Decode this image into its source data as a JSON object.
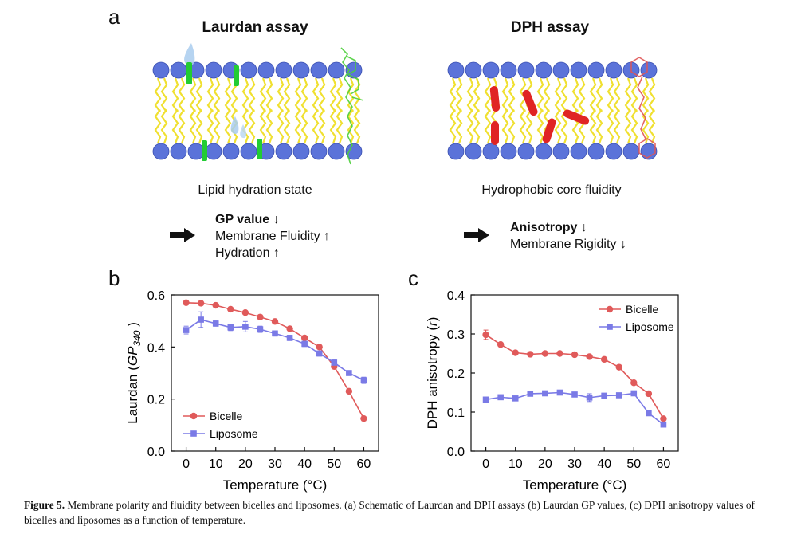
{
  "panel_a": {
    "letter": "a",
    "laurdan": {
      "title": "Laurdan assay",
      "subtitle": "Lipid hydration state",
      "summary": {
        "bold": "GP value ↓",
        "line2": "Membrane Fluidity ↑",
        "line3": "Hydration ↑"
      }
    },
    "dph": {
      "title": "DPH assay",
      "subtitle": "Hydrophobic core fluidity",
      "summary": {
        "bold": "Anisotropy ↓",
        "line2": "Membrane Rigidity ↓"
      }
    },
    "colors": {
      "lipid_head": "#5b73d9",
      "lipid_tail": "#f0e030",
      "laurdan_probe": "#22cc33",
      "dph_probe": "#e02424",
      "water": "#a9cdef"
    }
  },
  "chart_data": [
    {
      "panel": "b",
      "type": "line",
      "xlabel": "Temperature (°C)",
      "ylabel_prefix": "Laurdan (",
      "ylabel_var": "GP",
      "ylabel_sub": "340",
      "ylabel_suffix": ")",
      "xlim": [
        -5,
        65
      ],
      "ylim": [
        0.0,
        0.6
      ],
      "xticks": [
        0,
        10,
        20,
        30,
        40,
        50,
        60
      ],
      "yticks": [
        0.0,
        0.2,
        0.4,
        0.6
      ],
      "ytick_labels": [
        "0.0",
        "0.2",
        "0.4",
        "0.6"
      ],
      "legend_position": "bottom-left",
      "x": [
        0,
        5,
        10,
        15,
        20,
        25,
        30,
        35,
        40,
        45,
        50,
        55,
        60
      ],
      "series": [
        {
          "name": "Bicelle",
          "color": "#e05a5a",
          "marker": "circle",
          "values": [
            0.57,
            0.568,
            0.56,
            0.545,
            0.532,
            0.515,
            0.498,
            0.47,
            0.435,
            0.4,
            0.325,
            0.23,
            0.125
          ],
          "errors": [
            0.005,
            0.005,
            0.005,
            0.005,
            0.005,
            0.005,
            0.005,
            0.005,
            0.005,
            0.005,
            0.005,
            0.005,
            0.005
          ]
        },
        {
          "name": "Liposome",
          "color": "#7a7ae6",
          "marker": "square",
          "values": [
            0.465,
            0.505,
            0.49,
            0.475,
            0.478,
            0.468,
            0.452,
            0.435,
            0.412,
            0.375,
            0.34,
            0.3,
            0.272
          ],
          "errors": [
            0.015,
            0.03,
            0.01,
            0.012,
            0.02,
            0.012,
            0.01,
            0.01,
            0.01,
            0.01,
            0.01,
            0.008,
            0.012
          ]
        }
      ]
    },
    {
      "panel": "c",
      "type": "line",
      "xlabel": "Temperature (°C)",
      "ylabel_prefix": "DPH anisotropy (",
      "ylabel_var": "r",
      "ylabel_sub": "",
      "ylabel_suffix": ")",
      "xlim": [
        -5,
        65
      ],
      "ylim": [
        0.0,
        0.4
      ],
      "xticks": [
        0,
        10,
        20,
        30,
        40,
        50,
        60
      ],
      "yticks": [
        0.0,
        0.1,
        0.2,
        0.3,
        0.4
      ],
      "ytick_labels": [
        "0.0",
        "0.1",
        "0.2",
        "0.3",
        "0.4"
      ],
      "legend_position": "top-right",
      "x": [
        0,
        5,
        10,
        15,
        20,
        25,
        30,
        35,
        40,
        45,
        50,
        55,
        60
      ],
      "series": [
        {
          "name": "Bicelle",
          "color": "#e05a5a",
          "marker": "circle",
          "values": [
            0.298,
            0.273,
            0.252,
            0.248,
            0.25,
            0.25,
            0.247,
            0.242,
            0.235,
            0.215,
            0.175,
            0.147,
            0.083
          ],
          "errors": [
            0.012,
            0.004,
            0.004,
            0.004,
            0.004,
            0.004,
            0.004,
            0.006,
            0.006,
            0.004,
            0.004,
            0.004,
            0.006
          ]
        },
        {
          "name": "Liposome",
          "color": "#7a7ae6",
          "marker": "square",
          "values": [
            0.132,
            0.138,
            0.135,
            0.147,
            0.148,
            0.15,
            0.145,
            0.137,
            0.142,
            0.143,
            0.148,
            0.097,
            0.068
          ],
          "errors": [
            0.004,
            0.004,
            0.006,
            0.004,
            0.004,
            0.004,
            0.004,
            0.01,
            0.006,
            0.004,
            0.006,
            0.004,
            0.004
          ]
        }
      ]
    }
  ],
  "caption": {
    "label": "Figure 5.",
    "text": " Membrane polarity and fluidity between bicelles and liposomes. (a) Schematic of Laurdan and DPH assays (b) Laurdan GP values, (c) DPH anisotropy values of bicelles and liposomes as a function of temperature."
  }
}
